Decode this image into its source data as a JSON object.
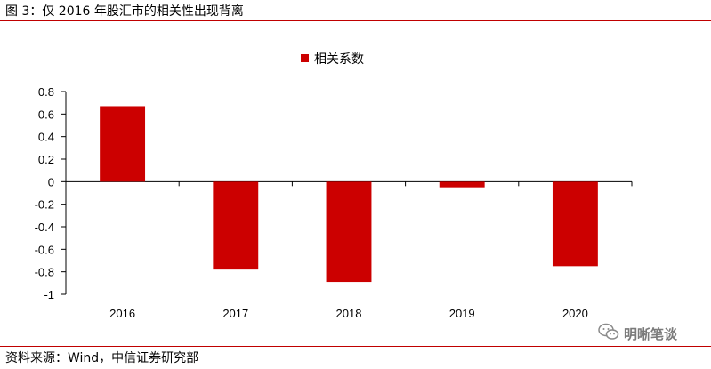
{
  "figure": {
    "title": "图 3：仅 2016 年股汇市的相关性出现背离",
    "source": "资料来源：Wind，中信证券研究部"
  },
  "watermark": {
    "text": "明晰笔谈",
    "icon": "wechat-icon"
  },
  "colors": {
    "bar": "#cc0000",
    "rule": "#c00000",
    "axis": "#000000"
  },
  "chart_data": {
    "type": "bar",
    "categories": [
      "2016",
      "2017",
      "2018",
      "2019",
      "2020"
    ],
    "series": [
      {
        "name": "相关系数",
        "values": [
          0.67,
          -0.78,
          -0.89,
          -0.05,
          -0.75
        ]
      }
    ],
    "ylim": [
      -1,
      0.8
    ],
    "yticks": [
      0.8,
      0.6,
      0.4,
      0.2,
      0,
      -0.2,
      -0.4,
      -0.6,
      -0.8,
      -1
    ],
    "ytick_labels": [
      "0.8",
      "0.6",
      "0.4",
      "0.2",
      "0",
      "-0.2",
      "-0.4",
      "-0.6",
      "-0.8",
      "-1"
    ],
    "legend": {
      "position": "top-center"
    },
    "grid": false
  }
}
